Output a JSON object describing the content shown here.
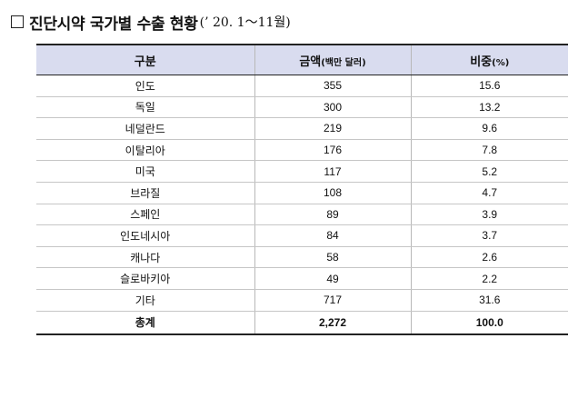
{
  "title": {
    "main": "진단시약 국가별 수출 현황",
    "sub": "(’ 20. 1～11월)"
  },
  "table": {
    "headers": {
      "category": "구분",
      "amount": "금액",
      "amount_unit": "(백만 달러)",
      "share": "비중",
      "share_unit": "(%)"
    },
    "rows": [
      {
        "country": "인도",
        "amount": "355",
        "share": "15.6"
      },
      {
        "country": "독일",
        "amount": "300",
        "share": "13.2"
      },
      {
        "country": "네덜란드",
        "amount": "219",
        "share": "9.6"
      },
      {
        "country": "이탈리아",
        "amount": "176",
        "share": "7.8"
      },
      {
        "country": "미국",
        "amount": "117",
        "share": "5.2"
      },
      {
        "country": "브라질",
        "amount": "108",
        "share": "4.7"
      },
      {
        "country": "스페인",
        "amount": "89",
        "share": "3.9"
      },
      {
        "country": "인도네시아",
        "amount": "84",
        "share": "3.7"
      },
      {
        "country": "캐나다",
        "amount": "58",
        "share": "2.6"
      },
      {
        "country": "슬로바키아",
        "amount": "49",
        "share": "2.2"
      },
      {
        "country": "기타",
        "amount": "717",
        "share": "31.6"
      }
    ],
    "total": {
      "label": "총계",
      "amount": "2,272",
      "share": "100.0"
    }
  }
}
